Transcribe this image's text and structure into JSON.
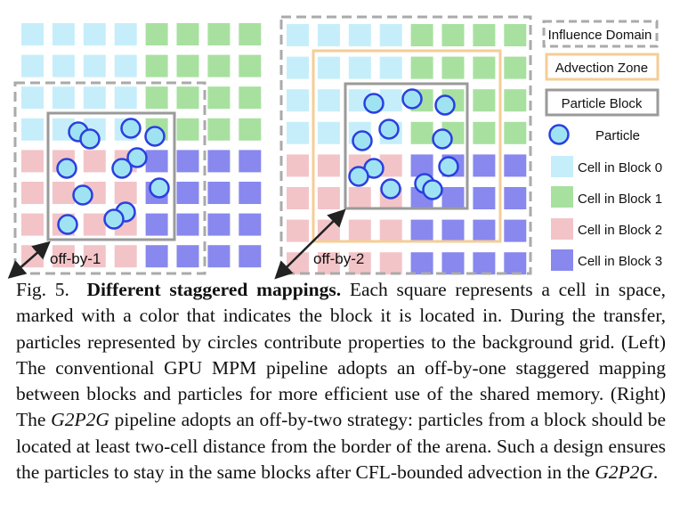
{
  "figure": {
    "labels": {
      "left_offset": "off-by-1",
      "right_offset": "off-by-2"
    },
    "legend": {
      "influence_domain": "Influence Domain",
      "advection_zone": "Advection Zone",
      "particle_block": "Particle Block",
      "particle": "Particle",
      "cell_block_0": "Cell in Block 0",
      "cell_block_1": "Cell in Block 1",
      "cell_block_2": "Cell in Block 2",
      "cell_block_3": "Cell in Block 3"
    },
    "colors": {
      "block0": "#c6eefa",
      "block1": "#a8e0a0",
      "block2": "#f2c4c8",
      "block3": "#8888ee",
      "particle_fill": "#9fe3f3",
      "particle_stroke": "#2a3fe0",
      "dashed_border": "#aaaaaa",
      "advection_border": "#f5cd96",
      "block_border": "#9a9a9a"
    }
  },
  "caption": {
    "fig_label": "Fig. 5.",
    "title": "Different staggered mappings.",
    "text_1": " Each square represents a cell in space, marked with a color that indicates the block it is located in. During the transfer, particles represented by circles contribute properties to the background grid. (Left) The conventional GPU MPM pipeline adopts an off-by-one staggered mapping between blocks and particles for more efficient use of the shared memory. (Right) The ",
    "g2p2g_1": "G2P2G",
    "text_2": " pipeline adopts an off-by-two strategy: particles from a block should be located at least two-cell distance from the border of the arena. Such a design ensures the particles to stay in the same blocks after CFL-bounded advection in the ",
    "g2p2g_2": "G2P2G",
    "text_3": "."
  }
}
